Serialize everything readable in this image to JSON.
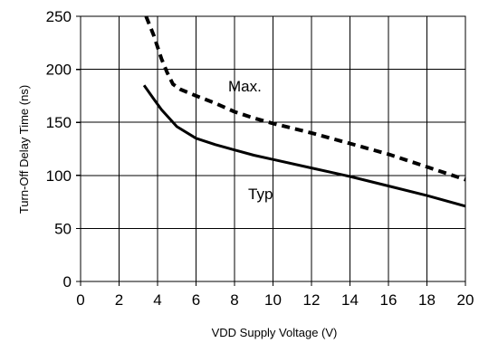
{
  "chart_data": {
    "type": "line",
    "xlabel": "VDD Supply Voltage (V)",
    "ylabel": "Turn-Off Delay Time (ns)",
    "xlim": [
      0,
      20
    ],
    "ylim": [
      0,
      250
    ],
    "xticks": [
      "0",
      "2",
      "4",
      "6",
      "8",
      "10",
      "12",
      "14",
      "16",
      "18",
      "20"
    ],
    "yticks": [
      "0",
      "50",
      "100",
      "150",
      "200",
      "250"
    ],
    "grid": true,
    "series": [
      {
        "name": "Max.",
        "style": "dashed",
        "color": "#000000",
        "x": [
          3.4,
          3.8,
          4.2,
          4.5,
          4.8,
          5.2,
          6,
          7,
          8,
          9,
          10,
          12,
          14,
          16,
          18,
          20
        ],
        "y": [
          250,
          232,
          210,
          197,
          186,
          181,
          175,
          168,
          160,
          154,
          149,
          140,
          130,
          120,
          108,
          96
        ]
      },
      {
        "name": "Typ",
        "style": "solid",
        "color": "#000000",
        "x": [
          3.3,
          3.8,
          4.2,
          4.6,
          5,
          6,
          7,
          8,
          9,
          10,
          12,
          14,
          16,
          18,
          20
        ],
        "y": [
          185,
          172,
          162,
          154,
          146,
          135,
          129,
          124,
          119,
          115,
          107,
          99,
          90,
          81,
          71
        ]
      }
    ],
    "annotations": [
      "Max.",
      "Typ"
    ]
  }
}
